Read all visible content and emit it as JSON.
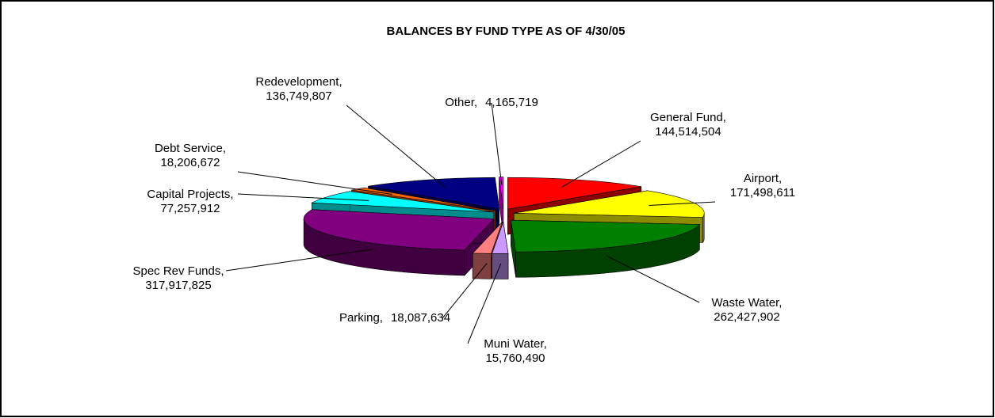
{
  "chart_data": {
    "type": "pie3d",
    "title": "BALANCES BY FUND TYPE AS OF 4/30/05",
    "categories": [
      "General Fund,",
      "Airport,",
      "Waste Water,",
      "Muni Water,",
      "Parking,",
      "Spec Rev Funds,",
      "Capital Projects,",
      "Debt Service,",
      "Redevelopment,",
      "Other,"
    ],
    "values": [
      144514504,
      171498611,
      262427902,
      15760490,
      18087634,
      317917825,
      77257912,
      18206672,
      136749807,
      4165719
    ],
    "value_labels": [
      "144,514,504",
      "171,498,611",
      "262,427,902",
      "15,760,490",
      "18,087,634",
      "317,917,825",
      "77,257,912",
      "18,206,672",
      "136,749,807",
      "4,165,719"
    ],
    "colors": [
      "#ff0000",
      "#ffff00",
      "#008000",
      "#cc99ff",
      "#ff8080",
      "#800080",
      "#00ffff",
      "#ff6600",
      "#000080",
      "#ff00ff"
    ]
  }
}
